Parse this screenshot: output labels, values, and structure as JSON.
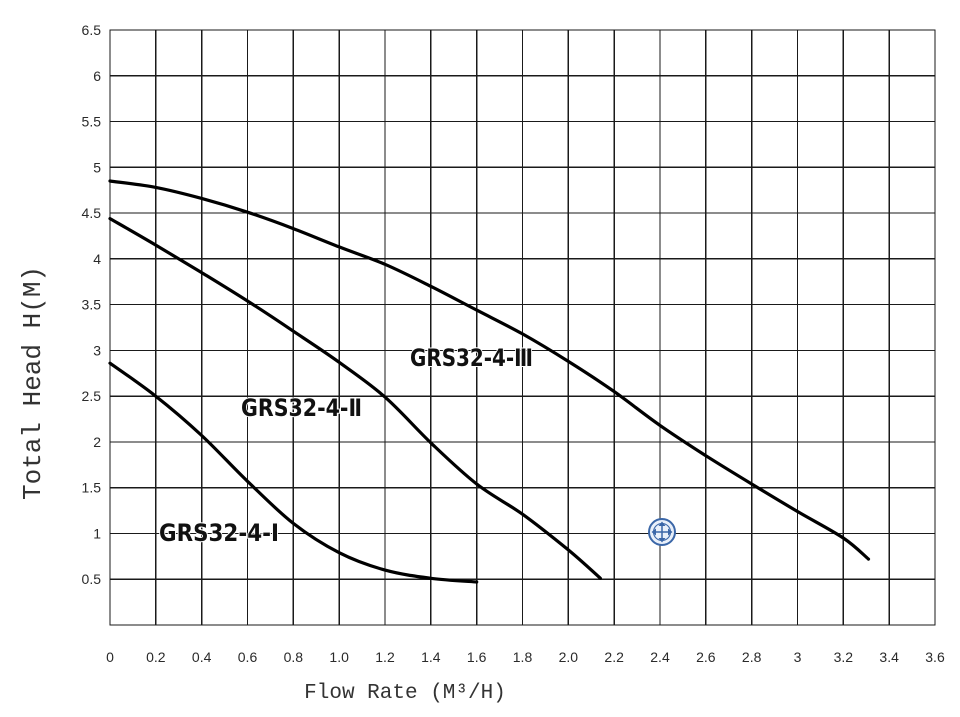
{
  "chart_data": {
    "type": "line",
    "title": "",
    "xlabel": "Flow Rate (M³/H)",
    "ylabel": "Total Head H(M)",
    "xlim": [
      0,
      3.6
    ],
    "ylim": [
      0,
      6.5
    ],
    "grid": true,
    "legend": "none",
    "xticks": [
      {
        "value": 0,
        "label": "0"
      },
      {
        "value": 0.2,
        "label": "0.2"
      },
      {
        "value": 0.4,
        "label": "0.4"
      },
      {
        "value": 0.6,
        "label": "0.6"
      },
      {
        "value": 0.8,
        "label": "0.8"
      },
      {
        "value": 1.0,
        "label": "1.0"
      },
      {
        "value": 1.2,
        "label": "1.2"
      },
      {
        "value": 1.4,
        "label": "1.4"
      },
      {
        "value": 1.6,
        "label": "1.6"
      },
      {
        "value": 1.8,
        "label": "1.8"
      },
      {
        "value": 2.0,
        "label": "2.0"
      },
      {
        "value": 2.2,
        "label": "2.2"
      },
      {
        "value": 2.4,
        "label": "2.4"
      },
      {
        "value": 2.6,
        "label": "2.6"
      },
      {
        "value": 2.8,
        "label": "2.8"
      },
      {
        "value": 3.0,
        "label": "3"
      },
      {
        "value": 3.2,
        "label": "3.2"
      },
      {
        "value": 3.4,
        "label": "3.4"
      },
      {
        "value": 3.6,
        "label": "3.6"
      }
    ],
    "yticks": [
      {
        "value": 0.5,
        "label": "0.5"
      },
      {
        "value": 1,
        "label": "1"
      },
      {
        "value": 1.5,
        "label": "1.5"
      },
      {
        "value": 2,
        "label": "2"
      },
      {
        "value": 2.5,
        "label": "2.5"
      },
      {
        "value": 3,
        "label": "3"
      },
      {
        "value": 3.5,
        "label": "3.5"
      },
      {
        "value": 4,
        "label": "4"
      },
      {
        "value": 4.5,
        "label": "4.5"
      },
      {
        "value": 5,
        "label": "5"
      },
      {
        "value": 5.5,
        "label": "5.5"
      },
      {
        "value": 6,
        "label": "6"
      },
      {
        "value": 6.5,
        "label": "6.5"
      }
    ],
    "series": [
      {
        "name": "GRS32-4-Ⅰ",
        "x": [
          0,
          0.2,
          0.4,
          0.6,
          0.8,
          1.0,
          1.2,
          1.4,
          1.6
        ],
        "y": [
          2.86,
          2.5,
          2.07,
          1.57,
          1.11,
          0.79,
          0.6,
          0.51,
          0.47
        ]
      },
      {
        "name": "GRS32-4-Ⅱ",
        "x": [
          0,
          0.2,
          0.4,
          0.6,
          0.8,
          1.0,
          1.2,
          1.4,
          1.6,
          1.8,
          2.0,
          2.14
        ],
        "y": [
          4.44,
          4.15,
          3.85,
          3.54,
          3.21,
          2.87,
          2.49,
          1.99,
          1.54,
          1.21,
          0.82,
          0.51
        ]
      },
      {
        "name": "GRS32-4-Ⅲ",
        "x": [
          0,
          0.2,
          0.4,
          0.6,
          0.8,
          1.0,
          1.2,
          1.4,
          1.6,
          1.8,
          2.0,
          2.2,
          2.4,
          2.6,
          2.8,
          3.0,
          3.2,
          3.31
        ],
        "y": [
          4.85,
          4.78,
          4.66,
          4.51,
          4.33,
          4.13,
          3.94,
          3.7,
          3.44,
          3.18,
          2.88,
          2.55,
          2.18,
          1.85,
          1.54,
          1.24,
          0.95,
          0.72
        ]
      }
    ],
    "colors": {
      "background": "#ffffff",
      "grid": "#1a1a1a",
      "line": "#000000"
    }
  },
  "overlay_icon": {
    "name": "move-icon",
    "color": "#3b67a8"
  }
}
